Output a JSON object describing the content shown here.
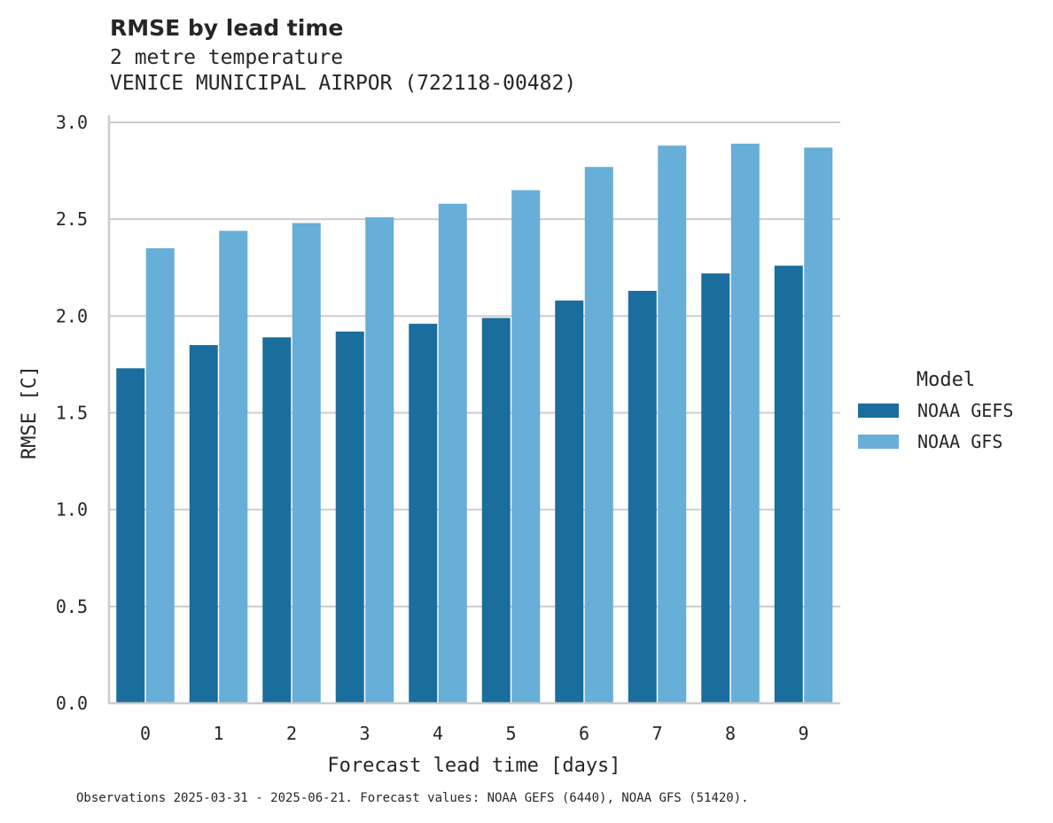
{
  "chart_data": {
    "type": "bar",
    "title": "RMSE by lead time",
    "subtitle": [
      "2 metre temperature",
      "VENICE MUNICIPAL AIRPOR (722118-00482)"
    ],
    "xlabel": "Forecast lead time [days]",
    "ylabel": "RMSE [C]",
    "categories": [
      "0",
      "1",
      "2",
      "3",
      "4",
      "5",
      "6",
      "7",
      "8",
      "9"
    ],
    "ylim": [
      0,
      3.0
    ],
    "yticks": [
      "0.0",
      "0.5",
      "1.0",
      "1.5",
      "2.0",
      "2.5",
      "3.0"
    ],
    "grid": "horizontal",
    "legend_placement": "right",
    "legend_title": "Model",
    "series": [
      {
        "name": "NOAA GEFS",
        "color": "#1a6e9e",
        "values": [
          1.73,
          1.85,
          1.89,
          1.92,
          1.96,
          1.99,
          2.08,
          2.13,
          2.22,
          2.26
        ]
      },
      {
        "name": "NOAA GFS",
        "color": "#67aed8",
        "values": [
          2.35,
          2.44,
          2.48,
          2.51,
          2.58,
          2.65,
          2.77,
          2.88,
          2.89,
          2.87
        ]
      }
    ],
    "footnote": "Observations 2025-03-31 - 2025-06-21. Forecast values: NOAA GEFS (6440), NOAA GFS (51420)."
  }
}
